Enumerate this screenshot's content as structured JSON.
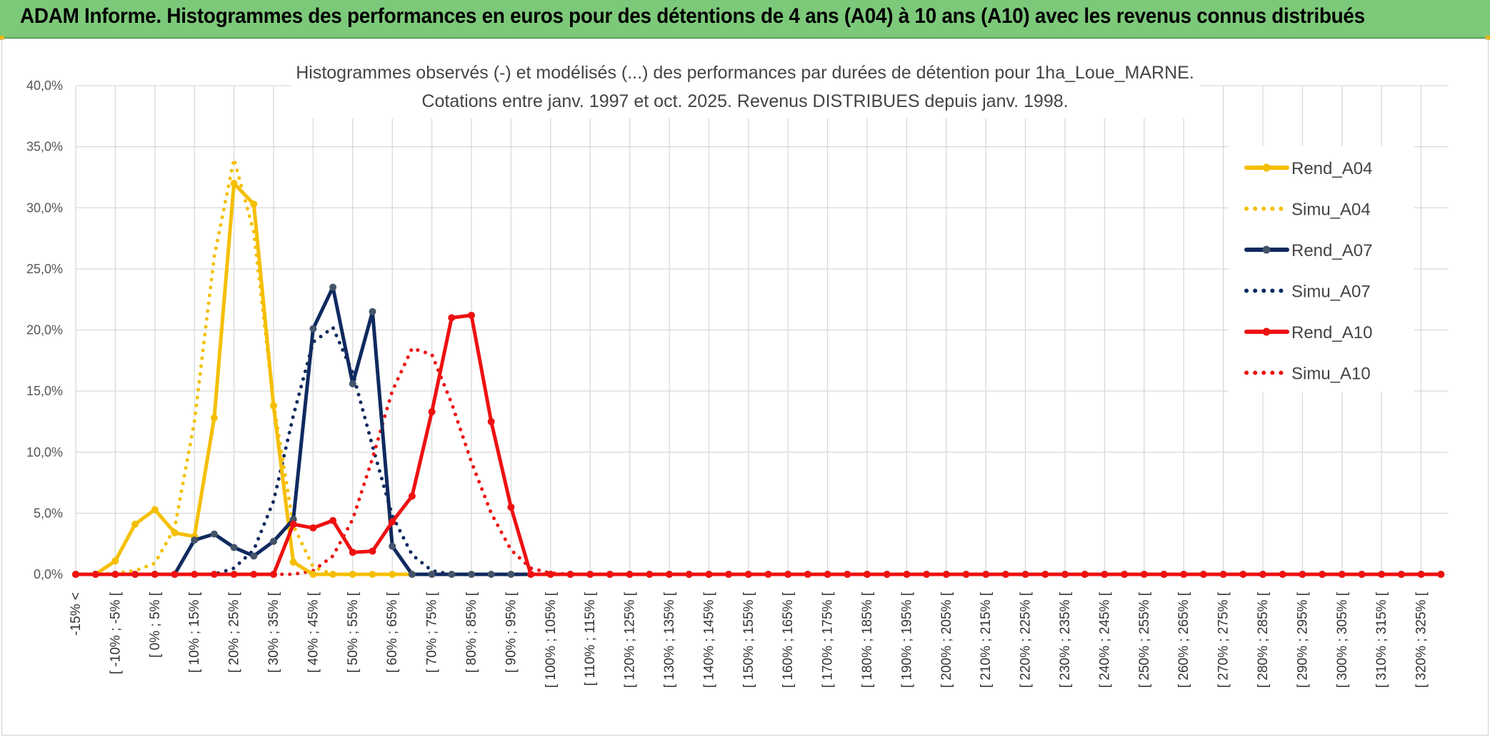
{
  "banner": {
    "title": "ADAM Informe. Histogrammes des performances en euros pour des détentions de 4 ans (A04) à 10 ans (A10) avec les revenus connus distribués"
  },
  "chart_data": {
    "type": "line",
    "title": "Histogrammes observés (-) et modélisés (...) des performances par durées de détention pour 1ha_Loue_MARNE.",
    "subtitle": "Cotations entre janv. 1997 et oct. 2025. Revenus DISTRIBUES depuis janv. 1998.",
    "ylim": [
      0,
      40
    ],
    "yticks": [
      "0,0%",
      "5,0%",
      "10,0%",
      "15,0%",
      "20,0%",
      "25,0%",
      "30,0%",
      "35,0%",
      "40,0%"
    ],
    "x_count": 70,
    "x_tick_labels": [
      "-15% <",
      "[ -10% ; -5% [",
      "[ 0% ; 5% [",
      "[ 10% ; 15% [",
      "[ 20% ; 25% [",
      "[ 30% ; 35% [",
      "[ 40% ; 45% [",
      "[ 50% ; 55% [",
      "[ 60% ; 65% [",
      "[ 70% ; 75% [",
      "[ 80% ; 85% [",
      "[ 90% ; 95% [",
      "[ 100% ; 105% [",
      "[ 110% ; 115% [",
      "[ 120% ; 125% [",
      "[ 130% ; 135% [",
      "[ 140% ; 145% [",
      "[ 150% ; 155% [",
      "[ 160% ; 165% [",
      "[ 170% ; 175% [",
      "[ 180% ; 185% [",
      "[ 190% ; 195% [",
      "[ 200% ; 205% [",
      "[ 210% ; 215% [",
      "[ 220% ; 225% [",
      "[ 230% ; 235% [",
      "[ 240% ; 245% [",
      "[ 250% ; 255% [",
      "[ 260% ; 265% [",
      "[ 270% ; 275% [",
      "[ 280% ; 285% [",
      "[ 290% ; 295% [",
      "[ 300% ; 305% [",
      "[ 310% ; 315% [",
      "[ 320% ; 325% ["
    ],
    "grid": true,
    "legend_position": "right",
    "series": [
      {
        "name": "Rend_A04",
        "style": "solid",
        "marker": true,
        "color": "#f5bf00",
        "values": [
          0,
          0,
          1.1,
          4.1,
          5.3,
          3.4,
          3.1,
          12.8,
          32.0,
          30.3,
          13.8,
          1.0,
          0,
          0,
          0,
          0,
          0,
          0,
          0
        ]
      },
      {
        "name": "Simu_A04",
        "style": "dotted",
        "marker": false,
        "color": "#f5bf00",
        "values": [
          0,
          0,
          0.1,
          0.3,
          0.9,
          3.8,
          12.5,
          26.0,
          34.0,
          28.0,
          14.0,
          4.0,
          0.6,
          0,
          0
        ]
      },
      {
        "name": "Rend_A07",
        "style": "solid",
        "marker": true,
        "color": "#0f2a5f",
        "values": [
          0,
          0,
          0,
          0,
          0,
          0,
          2.8,
          3.3,
          2.2,
          1.5,
          2.7,
          4.5,
          20.1,
          23.5,
          15.6,
          21.5,
          2.3,
          0,
          0,
          0,
          0,
          0,
          0,
          0
        ]
      },
      {
        "name": "Simu_A07",
        "style": "dotted",
        "marker": false,
        "color": "#0f2a5f",
        "values": [
          0,
          0,
          0,
          0,
          0,
          0,
          0,
          0,
          0.5,
          2.0,
          6.0,
          13.0,
          19.0,
          20.2,
          16.5,
          10.5,
          4.8,
          1.6,
          0.3,
          0,
          0
        ]
      },
      {
        "name": "Rend_A10",
        "style": "solid",
        "marker": true,
        "color": "#ee1111",
        "values": [
          0,
          0,
          0,
          0,
          0,
          0,
          0,
          0,
          0,
          0,
          0,
          4.1,
          3.8,
          4.4,
          1.8,
          1.9,
          4.3,
          6.4,
          13.3,
          21.0,
          21.2,
          12.5,
          5.5,
          0,
          0,
          0,
          0,
          0,
          0,
          0,
          0,
          0,
          0,
          0,
          0,
          0,
          0,
          0,
          0,
          0,
          0,
          0,
          0,
          0,
          0,
          0,
          0,
          0,
          0,
          0,
          0,
          0,
          0,
          0,
          0,
          0,
          0,
          0,
          0,
          0,
          0,
          0,
          0,
          0,
          0,
          0,
          0,
          0,
          0,
          0
        ]
      },
      {
        "name": "Simu_A10",
        "style": "dotted",
        "marker": false,
        "color": "#ee1111",
        "values": [
          0,
          0,
          0,
          0,
          0,
          0,
          0,
          0,
          0,
          0,
          0,
          0,
          0.3,
          1.5,
          4.5,
          9.5,
          15.0,
          18.5,
          18.0,
          14.0,
          9.2,
          5.0,
          2.0,
          0.5,
          0.1,
          0
        ]
      }
    ]
  }
}
